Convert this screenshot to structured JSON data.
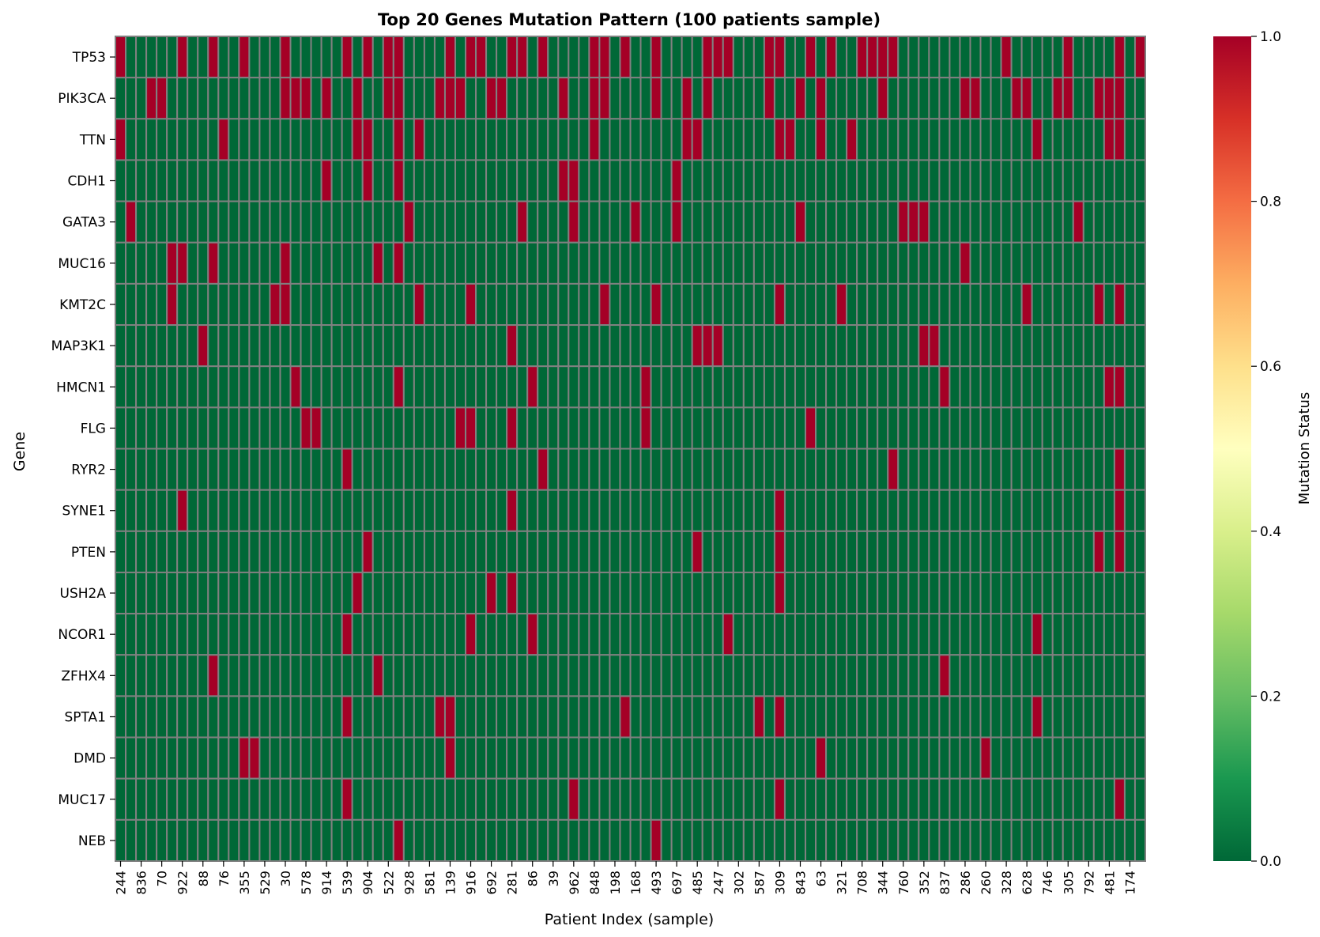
{
  "chart_data": {
    "type": "heatmap",
    "title": "Top 20 Genes Mutation Pattern (100 patients sample)",
    "xlabel": "Patient Index (sample)",
    "ylabel": "Gene",
    "colorbar_label": "Mutation Status",
    "colorbar_range": [
      0.0,
      1.0
    ],
    "colorbar_ticks": [
      "0.0",
      "0.2",
      "0.4",
      "0.6",
      "0.8",
      "1.0"
    ],
    "colormap": "RdYlGn_r",
    "colors": {
      "low": "#006837",
      "high": "#a50026",
      "cell_border": "#808080"
    },
    "n_columns": 100,
    "x_tick_labels": [
      "244",
      "836",
      "70",
      "922",
      "88",
      "76",
      "355",
      "529",
      "30",
      "578",
      "914",
      "539",
      "904",
      "522",
      "928",
      "581",
      "139",
      "916",
      "692",
      "281",
      "86",
      "39",
      "962",
      "848",
      "198",
      "168",
      "493",
      "697",
      "485",
      "247",
      "302",
      "587",
      "309",
      "843",
      "63",
      "321",
      "708",
      "344",
      "760",
      "352",
      "837",
      "286",
      "260",
      "328",
      "628",
      "746",
      "305",
      "792",
      "481",
      "174"
    ],
    "genes": [
      "TP53",
      "PIK3CA",
      "TTN",
      "CDH1",
      "GATA3",
      "MUC16",
      "KMT2C",
      "MAP3K1",
      "HMCN1",
      "FLG",
      "RYR2",
      "SYNE1",
      "PTEN",
      "USH2A",
      "NCOR1",
      "ZFHX4",
      "SPTA1",
      "DMD",
      "MUC17",
      "NEB"
    ],
    "mutated_columns": {
      "TP53": [
        0,
        6,
        9,
        12,
        16,
        22,
        24,
        26,
        27,
        32,
        34,
        35,
        38,
        39,
        41,
        46,
        47,
        49,
        52,
        57,
        58,
        59,
        63,
        64,
        67,
        69,
        72,
        73,
        74,
        75,
        86,
        92,
        97,
        99
      ],
      "PIK3CA": [
        3,
        4,
        16,
        17,
        18,
        20,
        23,
        26,
        27,
        31,
        32,
        33,
        36,
        37,
        43,
        46,
        47,
        52,
        55,
        57,
        63,
        66,
        68,
        74,
        82,
        83,
        87,
        88,
        91,
        92,
        95,
        96,
        97
      ],
      "TTN": [
        0,
        10,
        23,
        24,
        27,
        29,
        46,
        55,
        56,
        64,
        65,
        68,
        71,
        89,
        96,
        97
      ],
      "CDH1": [
        20,
        24,
        27,
        43,
        44,
        54
      ],
      "GATA3": [
        1,
        28,
        39,
        44,
        50,
        54,
        66,
        76,
        77,
        78,
        93
      ],
      "MUC16": [
        5,
        6,
        9,
        16,
        25,
        27,
        82
      ],
      "KMT2C": [
        5,
        15,
        16,
        29,
        34,
        47,
        52,
        64,
        70,
        88,
        95,
        97
      ],
      "MAP3K1": [
        8,
        38,
        56,
        57,
        58,
        78,
        79
      ],
      "HMCN1": [
        17,
        27,
        40,
        51,
        80,
        96,
        97
      ],
      "FLG": [
        18,
        19,
        33,
        34,
        38,
        51,
        67
      ],
      "RYR2": [
        22,
        41,
        75,
        97
      ],
      "SYNE1": [
        6,
        38,
        64,
        97
      ],
      "PTEN": [
        24,
        56,
        64,
        95,
        97
      ],
      "USH2A": [
        23,
        36,
        38,
        64
      ],
      "NCOR1": [
        22,
        34,
        40,
        59,
        89
      ],
      "ZFHX4": [
        9,
        25,
        80
      ],
      "SPTA1": [
        22,
        31,
        32,
        49,
        62,
        64,
        89
      ],
      "DMD": [
        12,
        13,
        32,
        68,
        84
      ],
      "MUC17": [
        22,
        44,
        64,
        97
      ],
      "NEB": [
        27,
        52
      ]
    }
  }
}
